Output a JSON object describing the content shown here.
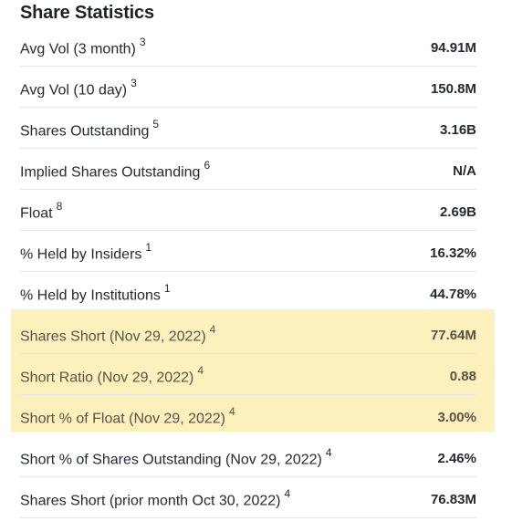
{
  "section": {
    "title": "Share Statistics"
  },
  "highlight_color": "#fcedb0",
  "rows": [
    {
      "label": "Avg Vol (3 month)",
      "note": "3",
      "value": "94.91M"
    },
    {
      "label": "Avg Vol (10 day)",
      "note": "3",
      "value": "150.8M"
    },
    {
      "label": "Shares Outstanding",
      "note": "5",
      "value": "3.16B"
    },
    {
      "label": "Implied Shares Outstanding",
      "note": "6",
      "value": "N/A"
    },
    {
      "label": "Float",
      "note": "8",
      "value": "2.69B"
    },
    {
      "label": "% Held by Insiders",
      "note": "1",
      "value": "16.32%"
    },
    {
      "label": "% Held by Institutions",
      "note": "1",
      "value": "44.78%"
    },
    {
      "label": "Shares Short (Nov 29, 2022)",
      "note": "4",
      "value": "77.64M"
    },
    {
      "label": "Short Ratio (Nov 29, 2022)",
      "note": "4",
      "value": "0.88"
    },
    {
      "label": "Short % of Float (Nov 29, 2022)",
      "note": "4",
      "value": "3.00%"
    },
    {
      "label": "Short % of Shares Outstanding (Nov 29, 2022)",
      "note": "4",
      "value": "2.46%"
    },
    {
      "label": "Shares Short (prior month Oct 30, 2022)",
      "note": "4",
      "value": "76.83M"
    }
  ]
}
